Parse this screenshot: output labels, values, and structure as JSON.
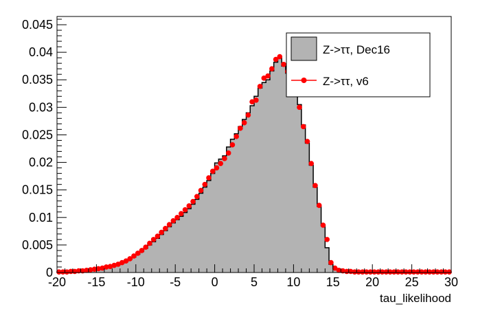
{
  "chart_data": {
    "type": "histogram",
    "xlabel": "tau_likelihood",
    "xlim": [
      -20,
      30
    ],
    "ylim": [
      0,
      0.0465
    ],
    "bin_width": 0.5,
    "x_ticks": [
      -20,
      -15,
      -10,
      -5,
      0,
      5,
      10,
      15,
      20,
      25,
      30
    ],
    "y_ticks": [
      0,
      0.005,
      0.01,
      0.015,
      0.02,
      0.025,
      0.03,
      0.035,
      0.04,
      0.045
    ],
    "x_tick_labels": [
      "-20",
      "-15",
      "-10",
      "-5",
      "0",
      "5",
      "10",
      "15",
      "20",
      "25",
      "30"
    ],
    "y_tick_labels": [
      "0",
      "0.005",
      "0.01",
      "0.015",
      "0.02",
      "0.025",
      "0.03",
      "0.035",
      "0.04",
      "0.045"
    ],
    "legend_placement": "top-right",
    "series": [
      {
        "name": "Z->ττ, Dec16",
        "style": "filled-histogram",
        "fill_color": "#b3b3b3",
        "line_color": "#000000",
        "x_bin_centers": [
          -19.75,
          -19.25,
          -18.75,
          -18.25,
          -17.75,
          -17.25,
          -16.75,
          -16.25,
          -15.75,
          -15.25,
          -14.75,
          -14.25,
          -13.75,
          -13.25,
          -12.75,
          -12.25,
          -11.75,
          -11.25,
          -10.75,
          -10.25,
          -9.75,
          -9.25,
          -8.75,
          -8.25,
          -7.75,
          -7.25,
          -6.75,
          -6.25,
          -5.75,
          -5.25,
          -4.75,
          -4.25,
          -3.75,
          -3.25,
          -2.75,
          -2.25,
          -1.75,
          -1.25,
          -0.75,
          -0.25,
          0.25,
          0.75,
          1.25,
          1.75,
          2.25,
          2.75,
          3.25,
          3.75,
          4.25,
          4.75,
          5.25,
          5.75,
          6.25,
          6.75,
          7.25,
          7.75,
          8.25,
          8.75,
          9.25,
          9.75,
          10.25,
          10.75,
          11.25,
          11.75,
          12.25,
          12.75,
          13.25,
          13.75,
          14.25,
          14.75,
          15.25,
          15.75,
          16.25,
          16.75,
          17.25,
          17.75,
          18.25,
          18.75,
          19.25,
          19.75,
          20.25,
          20.75,
          21.25,
          21.75,
          22.25,
          22.75,
          23.25,
          23.75,
          24.25,
          24.75,
          25.25,
          25.75,
          26.25,
          26.75,
          27.25,
          27.75,
          28.25,
          28.75,
          29.25,
          29.75
        ],
        "values": [
          0.0001,
          0.0001,
          0.0001,
          0.0001,
          0.0002,
          0.0002,
          0.0003,
          0.0003,
          0.0004,
          0.0005,
          0.0006,
          0.0007,
          0.0009,
          0.001,
          0.0012,
          0.0014,
          0.0017,
          0.002,
          0.0024,
          0.0028,
          0.0033,
          0.0038,
          0.0044,
          0.005,
          0.0056,
          0.0062,
          0.0069,
          0.0076,
          0.0083,
          0.009,
          0.0096,
          0.0102,
          0.0109,
          0.0116,
          0.0124,
          0.0133,
          0.0144,
          0.0155,
          0.0167,
          0.018,
          0.0199,
          0.0206,
          0.0212,
          0.0228,
          0.0242,
          0.0252,
          0.0265,
          0.0278,
          0.029,
          0.0303,
          0.032,
          0.0335,
          0.0345,
          0.035,
          0.0366,
          0.0382,
          0.039,
          0.0375,
          0.0362,
          0.0345,
          0.033,
          0.0305,
          0.0268,
          0.0235,
          0.0195,
          0.0155,
          0.012,
          0.0085,
          0.0045,
          0.0015,
          0.0008,
          0.0005,
          0.0003,
          0.0002,
          0.0002,
          0.0001,
          0.0001,
          0.0001,
          0.0001,
          0.0001,
          0.0001,
          0.0001,
          0.0001,
          0.0001,
          0.0001,
          0.0001,
          0.0001,
          0.0001,
          0.0001,
          0.0001,
          0.0001,
          0.0001,
          0.0001,
          0.0001,
          0.0001,
          0.0001,
          0.0001,
          0.0001,
          0.0001,
          0.0001
        ]
      },
      {
        "name": "Z->ττ, v6",
        "style": "markers",
        "marker_color": "#ff0000",
        "x_bin_centers": [
          -19.75,
          -19.25,
          -18.75,
          -18.25,
          -17.75,
          -17.25,
          -16.75,
          -16.25,
          -15.75,
          -15.25,
          -14.75,
          -14.25,
          -13.75,
          -13.25,
          -12.75,
          -12.25,
          -11.75,
          -11.25,
          -10.75,
          -10.25,
          -9.75,
          -9.25,
          -8.75,
          -8.25,
          -7.75,
          -7.25,
          -6.75,
          -6.25,
          -5.75,
          -5.25,
          -4.75,
          -4.25,
          -3.75,
          -3.25,
          -2.75,
          -2.25,
          -1.75,
          -1.25,
          -0.75,
          -0.25,
          0.25,
          0.75,
          1.25,
          1.75,
          2.25,
          2.75,
          3.25,
          3.75,
          4.25,
          4.75,
          5.25,
          5.75,
          6.25,
          6.75,
          7.25,
          7.75,
          8.25,
          8.75,
          9.25,
          9.75,
          10.25,
          10.75,
          11.25,
          11.75,
          12.25,
          12.75,
          13.25,
          13.75,
          14.25,
          14.75,
          15.25,
          15.75,
          16.25,
          16.75,
          17.25,
          17.75,
          18.25,
          18.75,
          19.25,
          19.75,
          20.25,
          20.75,
          21.25,
          21.75,
          22.25,
          22.75,
          23.25,
          23.75,
          24.25,
          24.75,
          25.25,
          25.75,
          26.25,
          26.75,
          27.25,
          27.75,
          28.25,
          28.75,
          29.25,
          29.75
        ],
        "values": [
          0.0001,
          0.0001,
          0.0001,
          0.0002,
          0.0002,
          0.0003,
          0.0003,
          0.0004,
          0.0005,
          0.0006,
          0.0007,
          0.0008,
          0.001,
          0.0011,
          0.0013,
          0.0015,
          0.0018,
          0.0021,
          0.0025,
          0.003,
          0.0035,
          0.004,
          0.0046,
          0.0053,
          0.006,
          0.0066,
          0.0073,
          0.008,
          0.0087,
          0.0094,
          0.01,
          0.0107,
          0.0114,
          0.0121,
          0.0129,
          0.0138,
          0.0149,
          0.016,
          0.0172,
          0.0184,
          0.019,
          0.0198,
          0.0207,
          0.0217,
          0.0232,
          0.0247,
          0.0262,
          0.0272,
          0.0286,
          0.031,
          0.0313,
          0.0338,
          0.0353,
          0.0357,
          0.037,
          0.0387,
          0.0392,
          0.0378,
          0.0365,
          0.0348,
          0.0343,
          0.03,
          0.0265,
          0.0238,
          0.0198,
          0.0158,
          0.0122,
          0.0086,
          0.006,
          0.0018,
          0.0008,
          0.0004,
          0.0003,
          0.0002,
          0.0002,
          0.0001,
          0.0001,
          0.0001,
          0.0001,
          0.0001,
          0.0001,
          0.0001,
          0.0001,
          0.0001,
          0.0001,
          0.0001,
          0.0001,
          0.0001,
          0.0001,
          0.0001,
          0.0001,
          0.0001,
          0.0001,
          0.0001,
          0.0001,
          0.0001,
          0.0001,
          0.0001,
          0.0001,
          0.0001
        ]
      }
    ]
  }
}
